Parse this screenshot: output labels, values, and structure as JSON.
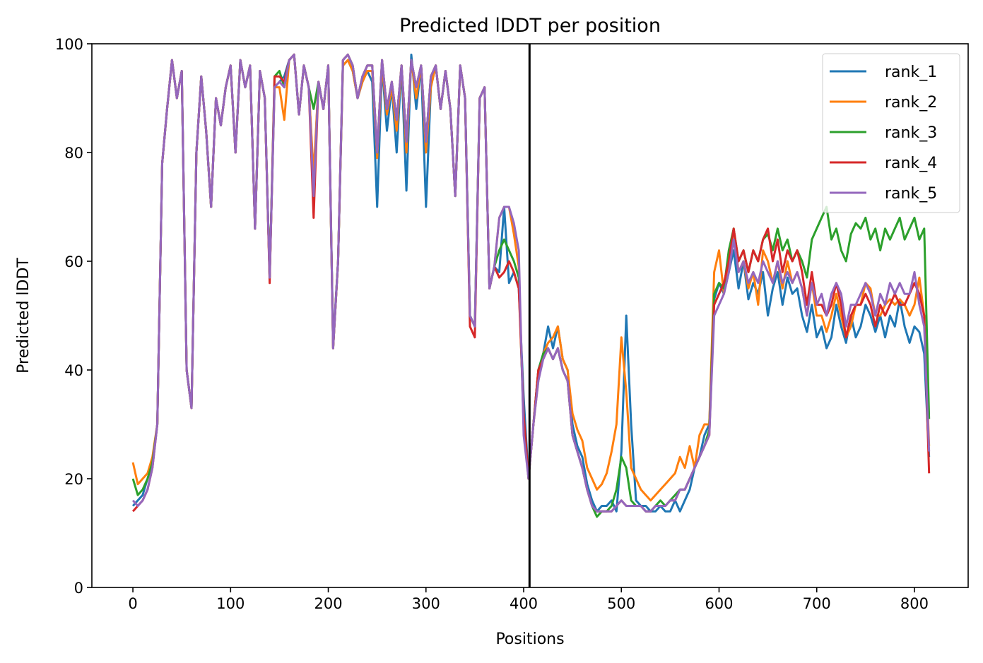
{
  "chart_data": {
    "type": "line",
    "title": "Predicted lDDT per position",
    "xlabel": "Positions",
    "ylabel": "Predicted lDDT",
    "xlim": [
      -42,
      855
    ],
    "ylim": [
      0,
      100
    ],
    "xticks": [
      0,
      100,
      200,
      300,
      400,
      500,
      600,
      700,
      800
    ],
    "yticks": [
      0,
      20,
      40,
      60,
      80,
      100
    ],
    "grid": false,
    "legend_position": "top-right",
    "vline_x": 406,
    "colors": {
      "rank_1": "#1f77b4",
      "rank_2": "#ff7f0e",
      "rank_3": "#2ca02c",
      "rank_4": "#d62728",
      "rank_5": "#9467bd",
      "vline": "#000000"
    },
    "x_step": 5,
    "series": [
      {
        "name": "rank_1",
        "values": [
          15,
          16,
          17,
          20,
          23,
          30,
          78,
          88,
          97,
          90,
          95,
          40,
          33,
          80,
          94,
          84,
          70,
          90,
          85,
          92,
          96,
          80,
          97,
          92,
          96,
          66,
          95,
          90,
          57,
          92,
          93,
          94,
          97,
          98,
          87,
          96,
          92,
          75,
          93,
          88,
          96,
          45,
          60,
          96,
          97,
          95,
          90,
          93,
          95,
          93,
          70,
          96,
          84,
          92,
          80,
          96,
          73,
          98,
          88,
          96,
          70,
          92,
          96,
          88,
          95,
          88,
          72,
          96,
          90,
          50,
          48,
          90,
          92,
          55,
          59,
          58,
          70,
          56,
          58,
          55,
          35,
          20,
          30,
          40,
          43,
          48,
          44,
          48,
          42,
          40,
          30,
          26,
          24,
          19,
          16,
          14,
          15,
          15,
          16,
          14,
          25,
          50,
          30,
          16,
          15,
          15,
          14,
          14,
          15,
          14,
          14,
          16,
          14,
          16,
          18,
          22,
          24,
          28,
          30,
          53,
          56,
          54,
          58,
          62,
          55,
          60,
          53,
          56,
          54,
          58,
          50,
          55,
          58,
          52,
          57,
          54,
          55,
          50,
          47,
          52,
          46,
          48,
          44,
          46,
          52,
          48,
          45,
          50,
          46,
          48,
          52,
          50,
          47,
          50,
          46,
          50,
          48,
          53,
          48,
          45,
          48,
          47,
          43,
          24
        ]
      },
      {
        "name": "rank_2",
        "values": [
          23,
          19,
          20,
          21,
          24,
          30,
          78,
          88,
          97,
          90,
          95,
          40,
          33,
          80,
          94,
          84,
          70,
          90,
          85,
          92,
          96,
          80,
          97,
          92,
          96,
          66,
          95,
          90,
          57,
          92,
          92,
          86,
          97,
          98,
          87,
          96,
          92,
          76,
          93,
          88,
          96,
          44,
          60,
          96,
          97,
          95,
          90,
          93,
          95,
          95,
          79,
          96,
          87,
          92,
          84,
          96,
          80,
          97,
          90,
          96,
          80,
          92,
          96,
          88,
          95,
          88,
          72,
          96,
          90,
          50,
          48,
          90,
          92,
          55,
          59,
          68,
          70,
          70,
          65,
          59,
          30,
          20,
          30,
          38,
          43,
          45,
          46,
          48,
          42,
          40,
          32,
          29,
          27,
          22,
          20,
          18,
          19,
          21,
          25,
          30,
          46,
          36,
          22,
          20,
          18,
          17,
          16,
          17,
          18,
          19,
          20,
          21,
          24,
          22,
          26,
          22,
          28,
          30,
          30,
          58,
          62,
          54,
          60,
          66,
          58,
          60,
          55,
          58,
          52,
          62,
          60,
          56,
          60,
          55,
          60,
          56,
          58,
          55,
          50,
          56,
          50,
          50,
          47,
          50,
          54,
          50,
          46,
          48,
          52,
          52,
          56,
          55,
          50,
          50,
          52,
          53,
          52,
          53,
          52,
          50,
          52,
          57,
          50,
          26
        ]
      },
      {
        "name": "rank_3",
        "values": [
          20,
          17,
          18,
          20,
          23,
          30,
          78,
          88,
          97,
          90,
          95,
          40,
          33,
          80,
          94,
          84,
          70,
          90,
          85,
          92,
          96,
          80,
          97,
          92,
          96,
          66,
          95,
          90,
          57,
          94,
          95,
          92,
          97,
          98,
          87,
          96,
          92,
          88,
          93,
          88,
          96,
          44,
          60,
          97,
          98,
          96,
          90,
          94,
          96,
          96,
          80,
          97,
          88,
          93,
          86,
          96,
          82,
          97,
          92,
          96,
          82,
          94,
          96,
          88,
          95,
          88,
          72,
          96,
          90,
          50,
          48,
          90,
          92,
          55,
          59,
          62,
          64,
          62,
          60,
          57,
          30,
          20,
          30,
          40,
          43,
          44,
          42,
          44,
          40,
          38,
          28,
          25,
          22,
          18,
          15,
          13,
          14,
          14,
          15,
          18,
          24,
          22,
          16,
          15,
          15,
          14,
          14,
          15,
          16,
          15,
          16,
          17,
          18,
          18,
          20,
          22,
          24,
          26,
          29,
          54,
          56,
          55,
          62,
          66,
          60,
          62,
          58,
          62,
          60,
          64,
          65,
          62,
          66,
          62,
          64,
          60,
          62,
          60,
          57,
          64,
          66,
          68,
          70,
          64,
          66,
          62,
          60,
          65,
          67,
          66,
          68,
          64,
          66,
          62,
          66,
          64,
          66,
          68,
          64,
          66,
          68,
          64,
          66,
          31
        ]
      },
      {
        "name": "rank_4",
        "values": [
          14,
          15,
          16,
          18,
          22,
          30,
          78,
          88,
          97,
          90,
          95,
          40,
          33,
          80,
          94,
          84,
          70,
          90,
          85,
          92,
          96,
          80,
          97,
          92,
          96,
          66,
          95,
          90,
          56,
          94,
          94,
          93,
          97,
          98,
          87,
          96,
          92,
          68,
          93,
          88,
          96,
          44,
          60,
          97,
          98,
          96,
          90,
          94,
          96,
          96,
          80,
          97,
          88,
          93,
          86,
          96,
          82,
          97,
          92,
          96,
          82,
          94,
          96,
          88,
          95,
          88,
          72,
          96,
          90,
          48,
          46,
          90,
          92,
          55,
          59,
          57,
          58,
          60,
          58,
          55,
          32,
          20,
          30,
          40,
          42,
          44,
          42,
          44,
          40,
          38,
          28,
          25,
          22,
          18,
          15,
          14,
          14,
          14,
          14,
          15,
          16,
          15,
          15,
          15,
          15,
          14,
          14,
          15,
          15,
          15,
          16,
          16,
          18,
          18,
          20,
          22,
          24,
          26,
          28,
          52,
          54,
          56,
          60,
          66,
          60,
          62,
          58,
          62,
          60,
          64,
          66,
          60,
          64,
          58,
          62,
          60,
          62,
          58,
          52,
          58,
          52,
          52,
          50,
          52,
          56,
          52,
          46,
          50,
          52,
          52,
          54,
          52,
          48,
          52,
          50,
          52,
          54,
          52,
          52,
          54,
          56,
          54,
          50,
          21
        ]
      },
      {
        "name": "rank_5",
        "values": [
          16,
          15,
          16,
          18,
          22,
          30,
          78,
          88,
          97,
          90,
          95,
          40,
          33,
          80,
          94,
          84,
          70,
          90,
          85,
          92,
          96,
          80,
          97,
          92,
          96,
          66,
          95,
          90,
          57,
          92,
          93,
          92,
          97,
          98,
          87,
          96,
          92,
          72,
          93,
          88,
          96,
          44,
          60,
          97,
          98,
          96,
          90,
          94,
          96,
          96,
          80,
          97,
          88,
          93,
          86,
          96,
          82,
          97,
          92,
          96,
          82,
          94,
          96,
          88,
          95,
          88,
          72,
          96,
          90,
          50,
          48,
          90,
          92,
          55,
          59,
          68,
          70,
          70,
          67,
          62,
          28,
          20,
          30,
          38,
          42,
          44,
          42,
          44,
          40,
          38,
          28,
          25,
          22,
          18,
          15,
          14,
          14,
          14,
          14,
          15,
          16,
          15,
          15,
          15,
          15,
          14,
          14,
          15,
          15,
          15,
          16,
          16,
          18,
          18,
          20,
          22,
          24,
          26,
          28,
          50,
          52,
          54,
          58,
          64,
          58,
          60,
          56,
          58,
          56,
          60,
          58,
          56,
          60,
          56,
          58,
          56,
          58,
          55,
          50,
          56,
          52,
          54,
          50,
          54,
          56,
          54,
          48,
          52,
          52,
          54,
          56,
          54,
          50,
          54,
          52,
          56,
          54,
          56,
          54,
          54,
          58,
          52,
          48,
          25
        ]
      }
    ]
  }
}
